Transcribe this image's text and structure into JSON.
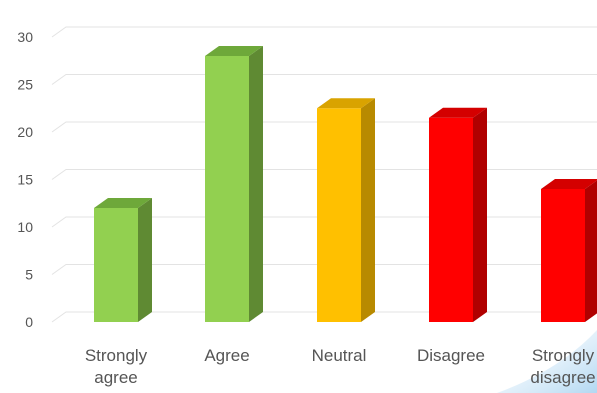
{
  "chart_data": {
    "type": "bar",
    "categories": [
      [
        "Strongly",
        "agree"
      ],
      [
        "Agree"
      ],
      [
        "Neutral"
      ],
      [
        "Disagree"
      ],
      [
        "Strongly",
        "disagree"
      ]
    ],
    "values": [
      12,
      28,
      22.5,
      21.5,
      14
    ],
    "bar_colors": [
      {
        "front": "#92d050",
        "side": "#5f8a33",
        "top": "#6ea83a"
      },
      {
        "front": "#92d050",
        "side": "#5f8a33",
        "top": "#6ea83a"
      },
      {
        "front": "#ffc000",
        "side": "#b88a00",
        "top": "#d9a300"
      },
      {
        "front": "#ff0000",
        "side": "#b00000",
        "top": "#d40000"
      },
      {
        "front": "#ff0000",
        "side": "#b00000",
        "top": "#d40000"
      }
    ],
    "ylim": [
      0,
      30
    ],
    "yticks": [
      0,
      5,
      10,
      15,
      20,
      25,
      30
    ],
    "grid": true,
    "title": "",
    "xlabel": "",
    "ylabel": ""
  }
}
